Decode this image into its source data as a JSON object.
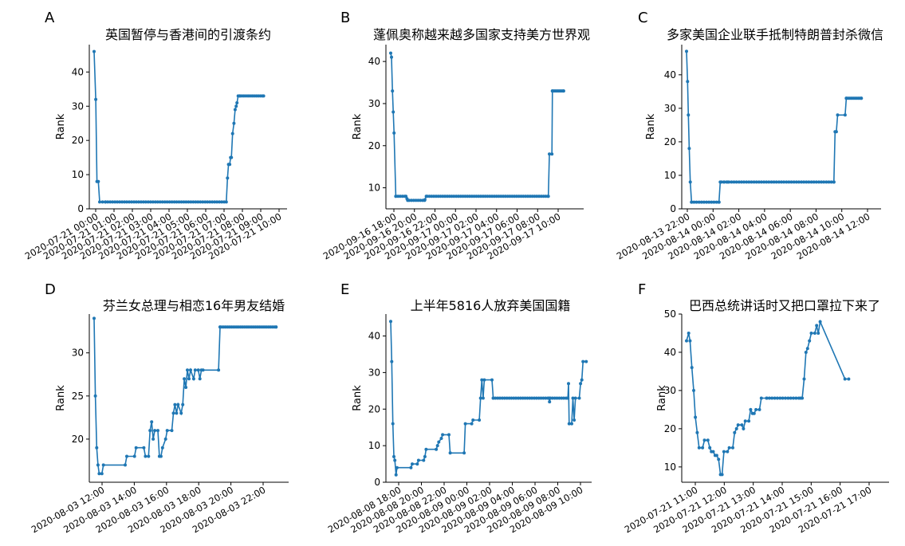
{
  "chart_data": [
    {
      "letter": "A",
      "type": "line",
      "title": "英国暂停与香港间的引渡条约",
      "ylabel": "Rank",
      "xlim": [
        0,
        11.1
      ],
      "ylim": [
        0,
        48
      ],
      "yticks": [
        0,
        10,
        20,
        30,
        40
      ],
      "xtick_labels": [
        "2020-07-21 00:00",
        "2020-07-21 01:00",
        "2020-07-21 02:00",
        "2020-07-21 03:00",
        "2020-07-21 04:00",
        "2020-07-21 05:00",
        "2020-07-21 06:00",
        "2020-07-21 07:00",
        "2020-07-21 08:00",
        "2020-07-21 09:00",
        "2020-07-21 10:00"
      ],
      "color": "#1f77b4",
      "segments": [
        [
          0,
          46
        ],
        [
          0.1,
          32
        ],
        [
          0.17,
          8
        ],
        [
          0.25,
          8
        ],
        [
          0.33,
          2
        ],
        [
          0.5,
          2
        ],
        [
          0.67,
          2
        ],
        [
          7.8,
          2
        ],
        [
          7.87,
          9
        ],
        [
          7.93,
          13
        ],
        [
          8.0,
          13
        ],
        [
          8.05,
          15
        ],
        [
          8.1,
          15
        ],
        [
          8.17,
          22
        ],
        [
          8.25,
          25
        ],
        [
          8.32,
          29
        ],
        [
          8.38,
          30
        ],
        [
          8.43,
          31
        ],
        [
          8.5,
          33
        ],
        [
          8.6,
          33
        ],
        [
          10.0,
          33
        ]
      ],
      "dense_from": 0.67,
      "dense_to": 7.8,
      "dense_step": 0.14,
      "dense2_from": 8.6,
      "dense2_to": 10.0,
      "dense2_step": 0.12
    },
    {
      "letter": "B",
      "type": "line",
      "title": "蓬佩奥称越来越多国家支持美方世界观",
      "ylabel": "Rank",
      "xlim": [
        0,
        18.5
      ],
      "ylim": [
        5,
        44
      ],
      "yticks": [
        10,
        20,
        30,
        40
      ],
      "xtick_labels": [
        "2020-09-16 18:00",
        "2020-09-16 20:00",
        "2020-09-16 22:00",
        "2020-09-17 00:00",
        "2020-09-17 02:00",
        "2020-09-17 04:00",
        "2020-09-17 06:00",
        "2020-09-17 08:00",
        "2020-09-17 10:00"
      ],
      "color": "#1f77b4",
      "segments": [
        [
          0,
          42
        ],
        [
          0.08,
          41
        ],
        [
          0.17,
          33
        ],
        [
          0.25,
          28
        ],
        [
          0.33,
          23
        ],
        [
          0.5,
          8
        ],
        [
          1.5,
          8
        ],
        [
          1.67,
          7
        ],
        [
          3.33,
          7
        ],
        [
          3.5,
          8
        ],
        [
          15.5,
          8
        ],
        [
          15.6,
          18
        ],
        [
          15.85,
          18
        ],
        [
          15.9,
          33
        ],
        [
          17.0,
          33
        ]
      ],
      "dense_from": 0.5,
      "dense_to": 15.5,
      "dense_step": 0.22,
      "dense2_from": 15.9,
      "dense2_to": 17.0,
      "dense2_step": 0.12
    },
    {
      "letter": "C",
      "type": "line",
      "title": "多家美国企业联手抵制特朗普封杀微信",
      "ylabel": "Rank",
      "xlim": [
        0,
        15.2
      ],
      "ylim": [
        0,
        49
      ],
      "yticks": [
        0,
        10,
        20,
        30,
        40
      ],
      "xtick_labels": [
        "2020-08-13 22:00",
        "2020-08-14 00:00",
        "2020-08-14 02:00",
        "2020-08-14 04:00",
        "2020-08-14 06:00",
        "2020-08-14 08:00",
        "2020-08-14 10:00",
        "2020-08-14 12:00"
      ],
      "color": "#1f77b4",
      "segments": [
        [
          0,
          47
        ],
        [
          0.08,
          38
        ],
        [
          0.15,
          28
        ],
        [
          0.22,
          18
        ],
        [
          0.3,
          8
        ],
        [
          0.4,
          2
        ],
        [
          2.6,
          2
        ],
        [
          2.7,
          8
        ],
        [
          3.0,
          8
        ],
        [
          3.3,
          8
        ],
        [
          11.8,
          8
        ],
        [
          11.9,
          23
        ],
        [
          12.0,
          23
        ],
        [
          12.1,
          28
        ],
        [
          12.7,
          28
        ],
        [
          12.8,
          33
        ],
        [
          14.0,
          33
        ]
      ],
      "dense_from": 0.4,
      "dense_to": 11.8,
      "dense_step": 0.2,
      "dense2_from": 12.8,
      "dense2_to": 14.0,
      "dense2_step": 0.12
    },
    {
      "letter": "D",
      "type": "line",
      "title": "芬兰女总理与相恋16年男友结婚",
      "ylabel": "Rank",
      "xlim": [
        0,
        12.2
      ],
      "ylim": [
        15,
        34.5
      ],
      "yticks": [
        20,
        25,
        30
      ],
      "xtick_labels": [
        "2020-08-03 12:00",
        "2020-08-03 14:00",
        "2020-08-03 16:00",
        "2020-08-03 18:00",
        "2020-08-03 20:00",
        "2020-08-03 22:00"
      ],
      "color": "#1f77b4",
      "segments": [
        [
          0,
          34
        ],
        [
          0.08,
          25
        ],
        [
          0.17,
          19
        ],
        [
          0.25,
          17
        ],
        [
          0.33,
          16
        ],
        [
          0.5,
          16
        ],
        [
          0.6,
          17
        ],
        [
          2.0,
          17
        ],
        [
          2.1,
          18
        ],
        [
          2.6,
          18
        ],
        [
          2.7,
          19
        ],
        [
          3.2,
          19
        ],
        [
          3.3,
          18
        ],
        [
          3.5,
          18
        ],
        [
          3.6,
          21
        ],
        [
          3.7,
          22
        ],
        [
          3.8,
          20
        ],
        [
          3.9,
          21
        ],
        [
          4.1,
          21
        ],
        [
          4.2,
          18
        ],
        [
          4.3,
          18
        ],
        [
          4.4,
          19
        ],
        [
          4.6,
          20
        ],
        [
          4.7,
          21
        ],
        [
          5.0,
          21
        ],
        [
          5.1,
          23
        ],
        [
          5.2,
          24
        ],
        [
          5.3,
          23
        ],
        [
          5.4,
          24
        ],
        [
          5.6,
          23
        ],
        [
          5.7,
          24
        ],
        [
          5.8,
          27
        ],
        [
          5.9,
          26
        ],
        [
          6.0,
          28
        ],
        [
          6.1,
          27
        ],
        [
          6.2,
          28
        ],
        [
          6.4,
          27
        ],
        [
          6.5,
          28
        ],
        [
          6.7,
          28
        ],
        [
          6.8,
          27
        ],
        [
          6.9,
          28
        ],
        [
          7.0,
          28
        ],
        [
          8.0,
          28
        ],
        [
          8.1,
          33
        ],
        [
          11.7,
          33
        ]
      ],
      "dense_from": 8.1,
      "dense_to": 11.7,
      "dense_step": 0.12
    },
    {
      "letter": "E",
      "type": "line",
      "title": "上半年5816人放弃美国国籍",
      "ylabel": "Rank",
      "xlim": [
        0,
        15.5
      ],
      "ylim": [
        0,
        46
      ],
      "yticks": [
        0,
        10,
        20,
        30,
        40
      ],
      "xtick_labels": [
        "2020-08-08 18:00",
        "2020-08-08 20:00",
        "2020-08-08 22:00",
        "2020-08-09 00:00",
        "2020-08-09 02:00",
        "2020-08-09 04:00",
        "2020-08-09 06:00",
        "2020-08-09 08:00",
        "2020-08-09 10:00"
      ],
      "color": "#1f77b4",
      "segments": [
        [
          0,
          44
        ],
        [
          0.08,
          33
        ],
        [
          0.17,
          16
        ],
        [
          0.25,
          7
        ],
        [
          0.33,
          6
        ],
        [
          0.42,
          2
        ],
        [
          0.5,
          4
        ],
        [
          1.6,
          4
        ],
        [
          1.7,
          5
        ],
        [
          2.1,
          5
        ],
        [
          2.2,
          6
        ],
        [
          2.6,
          6
        ],
        [
          2.7,
          7
        ],
        [
          2.8,
          9
        ],
        [
          3.6,
          9
        ],
        [
          3.7,
          10
        ],
        [
          3.8,
          11
        ],
        [
          4.0,
          12
        ],
        [
          4.1,
          13
        ],
        [
          4.6,
          13
        ],
        [
          4.7,
          8
        ],
        [
          5.8,
          8
        ],
        [
          5.9,
          16
        ],
        [
          6.4,
          16
        ],
        [
          6.5,
          17
        ],
        [
          7.0,
          17
        ],
        [
          7.1,
          23
        ],
        [
          7.2,
          28
        ],
        [
          7.3,
          23
        ],
        [
          7.4,
          28
        ],
        [
          8.0,
          28
        ],
        [
          8.1,
          23
        ],
        [
          12.5,
          23
        ],
        [
          12.55,
          22
        ],
        [
          12.6,
          23
        ],
        [
          14.0,
          23
        ],
        [
          14.05,
          27
        ],
        [
          14.1,
          16
        ],
        [
          14.3,
          16
        ],
        [
          14.4,
          23
        ],
        [
          14.5,
          17
        ],
        [
          14.6,
          23
        ],
        [
          14.9,
          23
        ],
        [
          15.0,
          27
        ],
        [
          15.1,
          28
        ],
        [
          15.2,
          33
        ],
        [
          15.45,
          33
        ]
      ],
      "dense_from": 8.1,
      "dense_to": 14.0,
      "dense_step": 0.18
    },
    {
      "letter": "F",
      "type": "line",
      "title": "巴西总统讲话时又把口罩拉下来了",
      "ylabel": "Rank",
      "xlim": [
        0,
        7.4
      ],
      "ylim": [
        6,
        50
      ],
      "yticks": [
        10,
        20,
        30,
        40,
        50
      ],
      "xtick_labels": [
        "2020-07-21 11:00",
        "2020-07-21 12:00",
        "2020-07-21 13:00",
        "2020-07-21 14:00",
        "2020-07-21 15:00",
        "2020-07-21 16:00",
        "2020-07-21 17:00"
      ],
      "color": "#1f77b4",
      "segments": [
        [
          0,
          43
        ],
        [
          0.08,
          45
        ],
        [
          0.13,
          43
        ],
        [
          0.2,
          36
        ],
        [
          0.27,
          30
        ],
        [
          0.33,
          23
        ],
        [
          0.4,
          19
        ],
        [
          0.47,
          15
        ],
        [
          0.6,
          15
        ],
        [
          0.67,
          17
        ],
        [
          0.8,
          17
        ],
        [
          0.87,
          15
        ],
        [
          0.93,
          14
        ],
        [
          1.0,
          14
        ],
        [
          1.07,
          13
        ],
        [
          1.13,
          13
        ],
        [
          1.2,
          12
        ],
        [
          1.27,
          8
        ],
        [
          1.33,
          8
        ],
        [
          1.4,
          14
        ],
        [
          1.53,
          14
        ],
        [
          1.6,
          15
        ],
        [
          1.73,
          15
        ],
        [
          1.8,
          19
        ],
        [
          1.87,
          20
        ],
        [
          1.93,
          21
        ],
        [
          2.07,
          21
        ],
        [
          2.13,
          20
        ],
        [
          2.2,
          22
        ],
        [
          2.33,
          22
        ],
        [
          2.4,
          25
        ],
        [
          2.47,
          24
        ],
        [
          2.53,
          24
        ],
        [
          2.6,
          25
        ],
        [
          2.73,
          25
        ],
        [
          2.8,
          28
        ],
        [
          3.0,
          28
        ],
        [
          4.27,
          28
        ],
        [
          4.33,
          28
        ],
        [
          4.4,
          33
        ],
        [
          4.47,
          40
        ],
        [
          4.53,
          41
        ],
        [
          4.6,
          43
        ],
        [
          4.67,
          45
        ],
        [
          4.8,
          45
        ],
        [
          4.87,
          47
        ],
        [
          4.93,
          45
        ],
        [
          5.0,
          48
        ],
        [
          5.93,
          33
        ],
        [
          6.07,
          33
        ]
      ],
      "dense_from": 3.0,
      "dense_to": 4.27,
      "dense_step": 0.1
    }
  ]
}
